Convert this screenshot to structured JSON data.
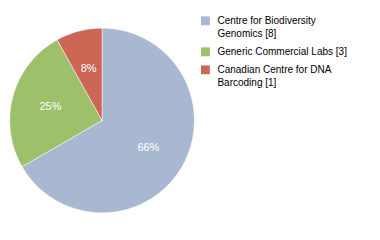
{
  "chart_data": {
    "type": "pie",
    "categories": [
      "Centre for Biodiversity\nGenomics [8]",
      "Generic Commercial Labs [3]",
      "Canadian Centre for DNA\nBarcoding [1]"
    ],
    "values": [
      66,
      25,
      8
    ],
    "value_labels": [
      "66%",
      "25%",
      "8%"
    ],
    "colors": [
      "#a8b8d0",
      "#9dc06a",
      "#cc6655"
    ],
    "data_labels": true,
    "legend": "right"
  }
}
